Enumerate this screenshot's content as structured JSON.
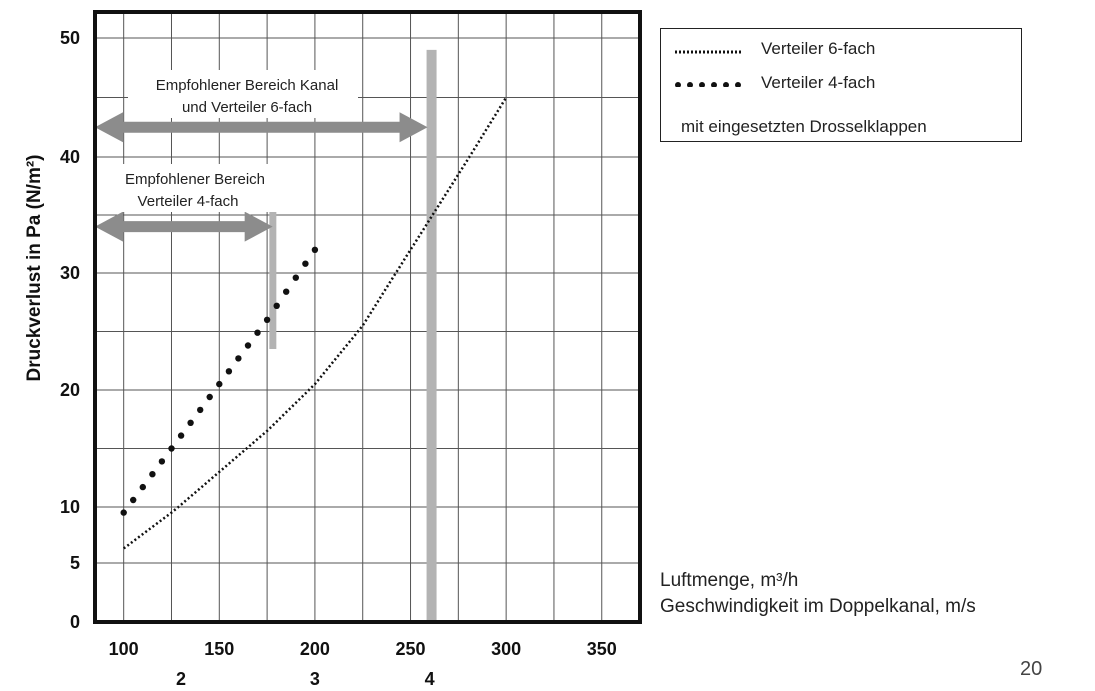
{
  "chart_data": {
    "type": "line",
    "ylabel": "Druckverlust in Pa (N/m²)",
    "x_ticks": [
      "100",
      "150",
      "200",
      "250",
      "300",
      "350"
    ],
    "x_secondary_ticks": [
      {
        "value": 130,
        "label": "2"
      },
      {
        "value": 200,
        "label": "3"
      },
      {
        "value": 260,
        "label": "4"
      }
    ],
    "y_ticks": [
      "0",
      "5",
      "10",
      "20",
      "30",
      "40",
      "50"
    ],
    "xlim": [
      85,
      370
    ],
    "ylim": [
      0,
      53
    ],
    "grid": true,
    "legend_position": "top-right, outside",
    "series": [
      {
        "name": "Verteiler 6-fach",
        "style": "dotted-fine",
        "x": [
          100,
          125,
          150,
          175,
          200,
          225,
          250,
          275,
          300
        ],
        "y": [
          6.3,
          9.5,
          13,
          16.5,
          20.5,
          25.5,
          32,
          38.5,
          45
        ]
      },
      {
        "name": "Verteiler 4-fach",
        "style": "dots-large",
        "x": [
          100,
          125,
          150,
          175,
          200
        ],
        "y": [
          9.5,
          15,
          20.5,
          26,
          32
        ]
      }
    ],
    "annotations": [
      {
        "text_lines": [
          "Empfohlener Bereich Kanal",
          "und Verteiler 6-fach"
        ],
        "x_start": 85,
        "x_end": 261,
        "y": 42.5
      },
      {
        "text_lines": [
          "Empfohlener Bereich",
          "Verteiler 4-fach"
        ],
        "x_start": 85,
        "x_end": 180,
        "y": 34
      }
    ],
    "vertical_markers": [
      {
        "x": 261,
        "y_start": 0,
        "y_end": 49
      },
      {
        "x": 178,
        "y_start": 23.5,
        "y_end": 37
      }
    ]
  },
  "legend": {
    "items": [
      {
        "label": "Verteiler 6-fach"
      },
      {
        "label": "Verteiler 4-fach"
      }
    ],
    "note": "mit eingesetzten Drosselklappen"
  },
  "axis_titles": {
    "primary": "Luftmenge, m³/h",
    "secondary": "Geschwindigkeit im Doppelkanal, m/s"
  },
  "page_number": "20"
}
